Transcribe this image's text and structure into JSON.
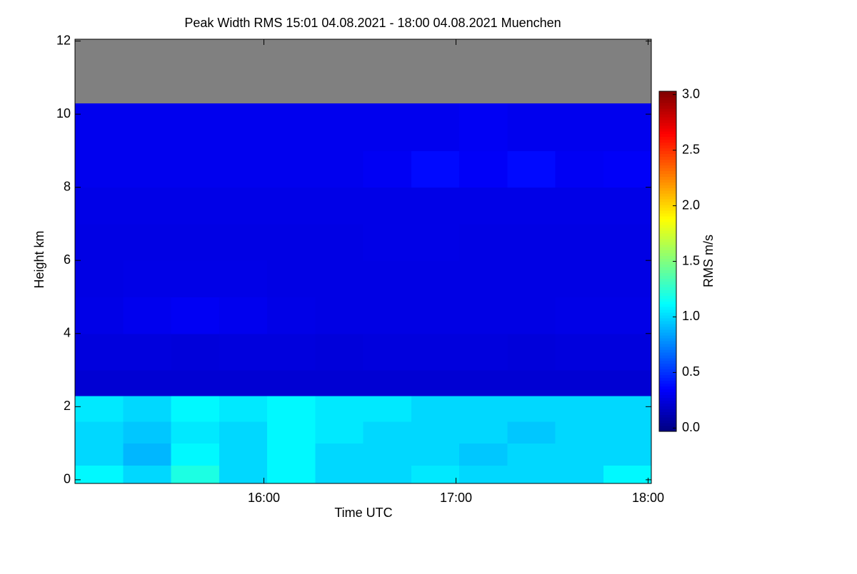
{
  "chart_data": {
    "type": "heatmap",
    "title": "Peak Width RMS   15:01 04.08.2021 - 18:00 04.08.2021 Muenchen",
    "x_label": "Time UTC",
    "y_label": "Height km",
    "colorbar_label": "RMS m/s",
    "colormap": "jet",
    "missing_color": "#808080",
    "xlim": [
      15.0167,
      18.0167
    ],
    "xticks": [
      {
        "value": 16,
        "label": "16:00"
      },
      {
        "value": 17,
        "label": "17:00"
      },
      {
        "value": 18,
        "label": "18:00"
      }
    ],
    "ylim": [
      -0.1,
      12.05
    ],
    "yticks": [
      0,
      2,
      4,
      6,
      8,
      10,
      12
    ],
    "clim": [
      -0.03,
      3.03
    ],
    "cticks": [
      {
        "value": 0,
        "label": "0.0"
      },
      {
        "value": 0.5,
        "label": "0.5"
      },
      {
        "value": 1,
        "label": "1.0"
      },
      {
        "value": 1.5,
        "label": "1.5"
      },
      {
        "value": 2,
        "label": "2.0"
      },
      {
        "value": 2.5,
        "label": "2.5"
      },
      {
        "value": 3,
        "label": "3.0"
      }
    ],
    "x": [
      15.0167,
      15.2667,
      15.5167,
      15.7667,
      16.0167,
      16.2667,
      16.5167,
      16.7667,
      17.0167,
      17.2667,
      17.5167,
      17.7667,
      18.0167
    ],
    "y": [
      -0.1,
      0.4,
      1.0,
      1.6,
      2.3,
      3,
      4,
      5,
      6,
      7,
      8,
      9,
      10.3,
      12.05
    ],
    "z": [
      [
        1.1,
        1.0,
        1.2,
        1.0,
        1.1,
        1.0,
        1.0,
        1.05,
        1.0,
        1.0,
        1.0,
        1.1
      ],
      [
        1.0,
        0.9,
        1.1,
        1.0,
        1.1,
        1.0,
        1.0,
        1.0,
        0.95,
        1.0,
        1.0,
        1.0
      ],
      [
        1.0,
        0.95,
        1.05,
        1.0,
        1.1,
        1.05,
        1.0,
        1.0,
        1.0,
        0.95,
        1.0,
        1.0
      ],
      [
        1.05,
        1.0,
        1.1,
        1.05,
        1.1,
        1.05,
        1.05,
        1.0,
        1.0,
        1.0,
        1.0,
        1.0
      ],
      [
        0.22,
        0.22,
        0.22,
        0.22,
        0.22,
        0.22,
        0.22,
        0.22,
        0.22,
        0.22,
        0.22,
        0.22
      ],
      [
        0.25,
        0.25,
        0.24,
        0.25,
        0.25,
        0.24,
        0.25,
        0.25,
        0.25,
        0.24,
        0.25,
        0.25
      ],
      [
        0.28,
        0.3,
        0.32,
        0.3,
        0.28,
        0.27,
        0.27,
        0.27,
        0.27,
        0.27,
        0.28,
        0.28
      ],
      [
        0.27,
        0.28,
        0.28,
        0.28,
        0.27,
        0.27,
        0.27,
        0.27,
        0.27,
        0.27,
        0.27,
        0.27
      ],
      [
        0.27,
        0.27,
        0.27,
        0.27,
        0.27,
        0.27,
        0.28,
        0.28,
        0.27,
        0.27,
        0.27,
        0.27
      ],
      [
        0.28,
        0.28,
        0.28,
        0.28,
        0.28,
        0.28,
        0.28,
        0.28,
        0.28,
        0.28,
        0.28,
        0.28
      ],
      [
        0.3,
        0.3,
        0.3,
        0.3,
        0.3,
        0.3,
        0.32,
        0.38,
        0.33,
        0.38,
        0.32,
        0.33
      ],
      [
        0.3,
        0.3,
        0.3,
        0.3,
        0.3,
        0.3,
        0.3,
        0.3,
        0.32,
        0.3,
        0.3,
        0.3
      ],
      [
        null,
        null,
        null,
        null,
        null,
        null,
        null,
        null,
        null,
        null,
        null,
        null
      ]
    ]
  }
}
